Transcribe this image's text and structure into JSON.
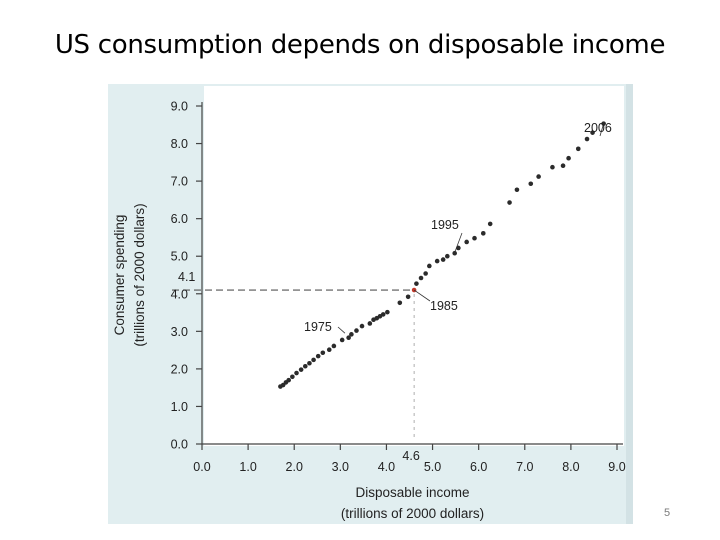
{
  "slide": {
    "title": "US consumption depends on disposable income",
    "page_number": "5"
  },
  "colors": {
    "panel_bg": "#e1eef0",
    "plot_bg": "#ffffff",
    "points": "#2b2b2b",
    "highlight_point": "#c0392b",
    "axis": "#444444"
  },
  "chart_data": {
    "type": "scatter",
    "xlabel": [
      "Disposable income",
      "(trillions of 2000 dollars)"
    ],
    "ylabel": [
      "Consumer spending",
      "(trillions of 2000 dollars)"
    ],
    "xlim": [
      0,
      9.0
    ],
    "ylim": [
      0,
      9.0
    ],
    "x_ticks": [
      "0.0",
      "1.0",
      "2.0",
      "3.0",
      "4.0",
      "5.0",
      "6.0",
      "7.0",
      "8.0",
      "9.0"
    ],
    "y_ticks": [
      "0.0",
      "1.0",
      "2.0",
      "3.0",
      "4.0",
      "5.0",
      "6.0",
      "7.0",
      "8.0",
      "9.0"
    ],
    "grid": false,
    "x": [
      1.7,
      1.76,
      1.82,
      1.88,
      1.96,
      2.05,
      2.15,
      2.24,
      2.33,
      2.42,
      2.52,
      2.62,
      2.76,
      2.86,
      3.04,
      3.18,
      3.24,
      3.35,
      3.47,
      3.64,
      3.72,
      3.79,
      3.86,
      3.93,
      4.02,
      4.29,
      4.47,
      4.6,
      4.65,
      4.75,
      4.85,
      4.93,
      5.1,
      5.23,
      5.32,
      5.48,
      5.56,
      5.74,
      5.91,
      6.1,
      6.25,
      6.67,
      6.83,
      7.13,
      7.3,
      7.6,
      7.83,
      7.95,
      8.16,
      8.35,
      8.47,
      8.71
    ],
    "y": [
      1.53,
      1.57,
      1.64,
      1.7,
      1.79,
      1.89,
      1.98,
      2.07,
      2.15,
      2.24,
      2.34,
      2.43,
      2.51,
      2.61,
      2.77,
      2.83,
      2.92,
      3.02,
      3.14,
      3.21,
      3.31,
      3.35,
      3.4,
      3.45,
      3.51,
      3.76,
      3.92,
      4.1,
      4.27,
      4.42,
      4.54,
      4.74,
      4.87,
      4.91,
      5.0,
      5.08,
      5.22,
      5.38,
      5.48,
      5.61,
      5.86,
      6.43,
      6.77,
      6.93,
      7.12,
      7.37,
      7.41,
      7.61,
      7.86,
      8.12,
      8.29,
      8.53
    ],
    "highlight": {
      "x": 4.6,
      "y": 4.1,
      "x_label": "4.6",
      "y_label": "4.1"
    },
    "annotations": [
      {
        "text": "1975",
        "x": 3.1,
        "y": 2.95
      },
      {
        "text": "1985",
        "x": 4.6,
        "y": 4.1
      },
      {
        "text": "1995",
        "x": 5.48,
        "y": 5.1
      },
      {
        "text": "2006",
        "x": 8.71,
        "y": 8.53
      }
    ]
  }
}
